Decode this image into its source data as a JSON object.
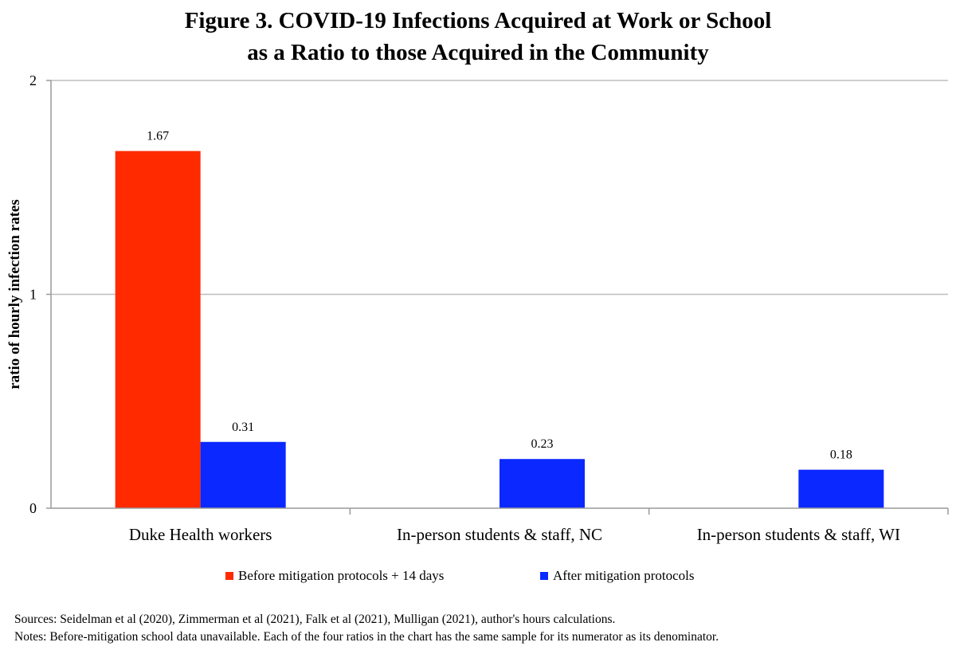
{
  "chart_data": {
    "type": "bar",
    "title_line1": "Figure 3.  COVID-19 Infections Acquired at Work or School",
    "title_line2": "as a Ratio to those Acquired in the Community",
    "ylabel": "ratio of hourly infection rates",
    "xlabel": "",
    "ylim": [
      0,
      2
    ],
    "yticks": [
      "0",
      "1",
      "2"
    ],
    "ytick_values": [
      0,
      1,
      2
    ],
    "grid": true,
    "legend_position": "bottom",
    "categories": [
      "Duke Health workers",
      "In-person students & staff, NC",
      "In-person students & staff, WI"
    ],
    "series": [
      {
        "name": "Before mitigation protocols + 14 days",
        "color": "#ff2a00",
        "values": [
          1.67,
          null,
          null
        ],
        "labels": [
          "1.67",
          "",
          ""
        ]
      },
      {
        "name": "After mitigation protocols",
        "color": "#0a28ff",
        "values": [
          0.31,
          0.23,
          0.18
        ],
        "labels": [
          "0.31",
          "0.23",
          "0.18"
        ]
      }
    ]
  },
  "footer": {
    "sources": "Sources: Seidelman et al (2020), Zimmerman et al (2021), Falk et al (2021), Mulligan (2021), author's hours calculations.",
    "notes": "Notes: Before-mitigation school data unavailable.  Each of the four ratios in the chart has the same sample for its numerator as its denominator."
  }
}
